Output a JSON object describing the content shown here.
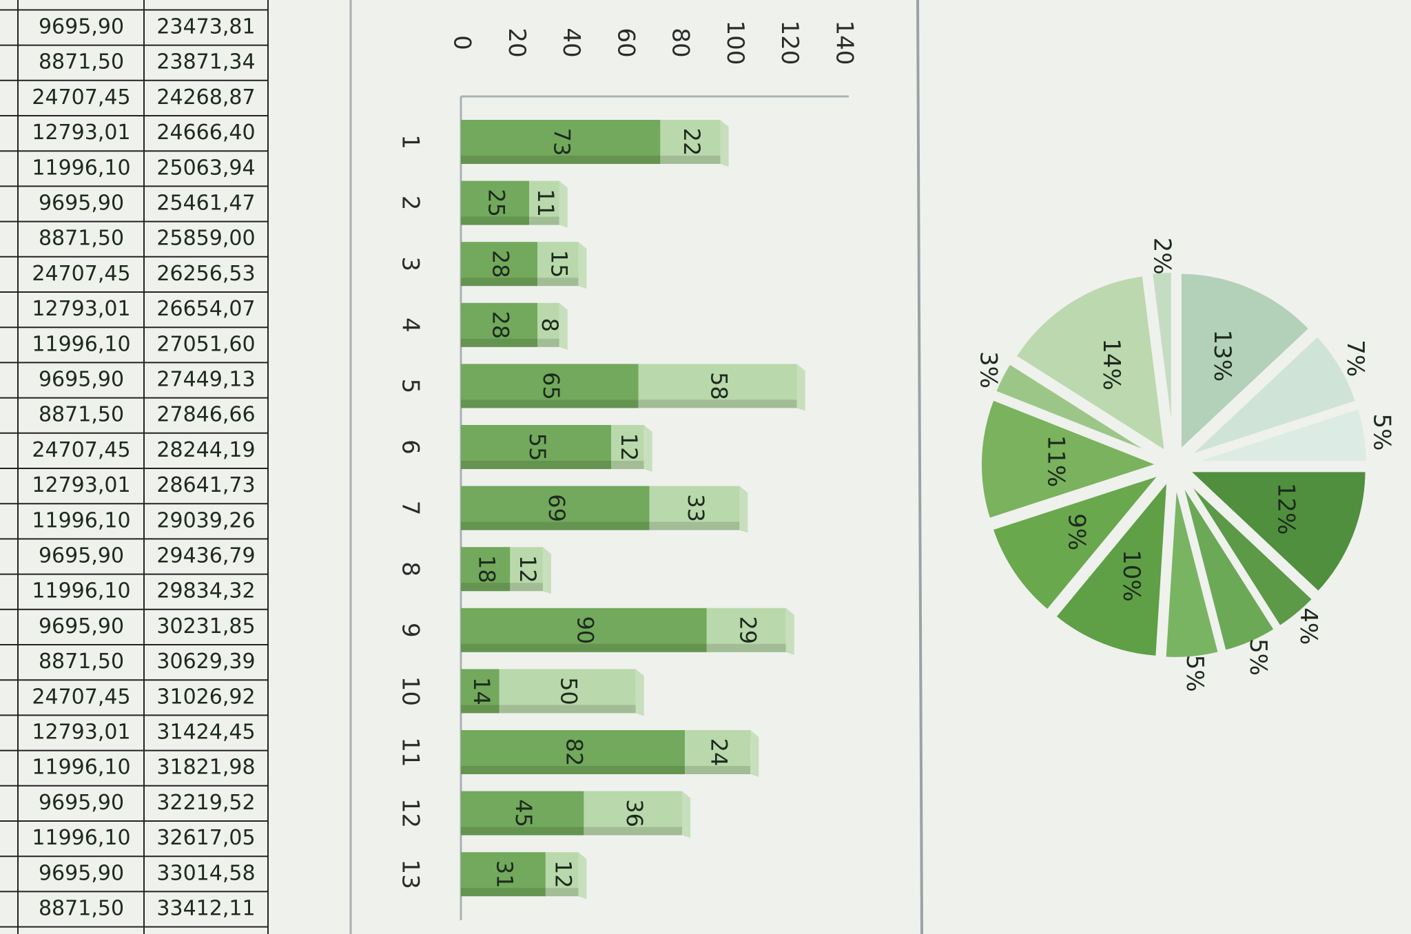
{
  "table": {
    "rows": [
      [
        "9695,90",
        "23473,81"
      ],
      [
        "8871,50",
        "23871,34"
      ],
      [
        "24707,45",
        "24268,87"
      ],
      [
        "12793,01",
        "24666,40"
      ],
      [
        "11996,10",
        "25063,94"
      ],
      [
        "9695,90",
        "25461,47"
      ],
      [
        "8871,50",
        "25859,00"
      ],
      [
        "24707,45",
        "26256,53"
      ],
      [
        "12793,01",
        "26654,07"
      ],
      [
        "11996,10",
        "27051,60"
      ],
      [
        "9695,90",
        "27449,13"
      ],
      [
        "8871,50",
        "27846,66"
      ],
      [
        "24707,45",
        "28244,19"
      ],
      [
        "12793,01",
        "28641,73"
      ],
      [
        "11996,10",
        "29039,26"
      ],
      [
        "9695,90",
        "29436,79"
      ],
      [
        "11996,10",
        "29834,32"
      ],
      [
        "9695,90",
        "30231,85"
      ],
      [
        "8871,50",
        "30629,39"
      ],
      [
        "24707,45",
        "31026,92"
      ],
      [
        "12793,01",
        "31424,45"
      ],
      [
        "11996,10",
        "31821,98"
      ],
      [
        "9695,90",
        "32219,52"
      ],
      [
        "11996,10",
        "32617,05"
      ],
      [
        "9695,90",
        "33014,58"
      ],
      [
        "8871,50",
        "33412,11"
      ]
    ]
  },
  "chart_data": [
    {
      "type": "bar",
      "orientation": "horizontal",
      "stacked": true,
      "categories": [
        "1",
        "2",
        "3",
        "4",
        "5",
        "6",
        "7",
        "8",
        "9",
        "10",
        "11",
        "12",
        "13"
      ],
      "series": [
        {
          "color": "#72a95c",
          "values": [
            73,
            25,
            28,
            28,
            65,
            55,
            69,
            18,
            90,
            14,
            82,
            45,
            31
          ]
        },
        {
          "color": "#b9d8ab",
          "values": [
            22,
            11,
            15,
            8,
            58,
            12,
            33,
            12,
            29,
            50,
            24,
            36,
            12
          ]
        }
      ],
      "xlim": [
        0,
        140
      ],
      "xticks": [
        0,
        20,
        40,
        60,
        80,
        100,
        120,
        140
      ]
    },
    {
      "type": "pie",
      "values": [
        13,
        7,
        5,
        12,
        4,
        5,
        5,
        10,
        9,
        11,
        3,
        14,
        2
      ],
      "value_labels": [
        "13%",
        "7%",
        "5%",
        "12%",
        "4%",
        "5%",
        "5%",
        "10%",
        "9%",
        "11%",
        "3%",
        "14%",
        "2%"
      ],
      "colors": [
        "#b3d0b8",
        "#cfe3d6",
        "#dcebe3",
        "#4f8f3e",
        "#5c9a48",
        "#6ca957",
        "#79b462",
        "#5f9f45",
        "#6aa84e",
        "#7ab25d",
        "#9cc688",
        "#bcd8ae",
        "#c4ddc2"
      ]
    }
  ]
}
